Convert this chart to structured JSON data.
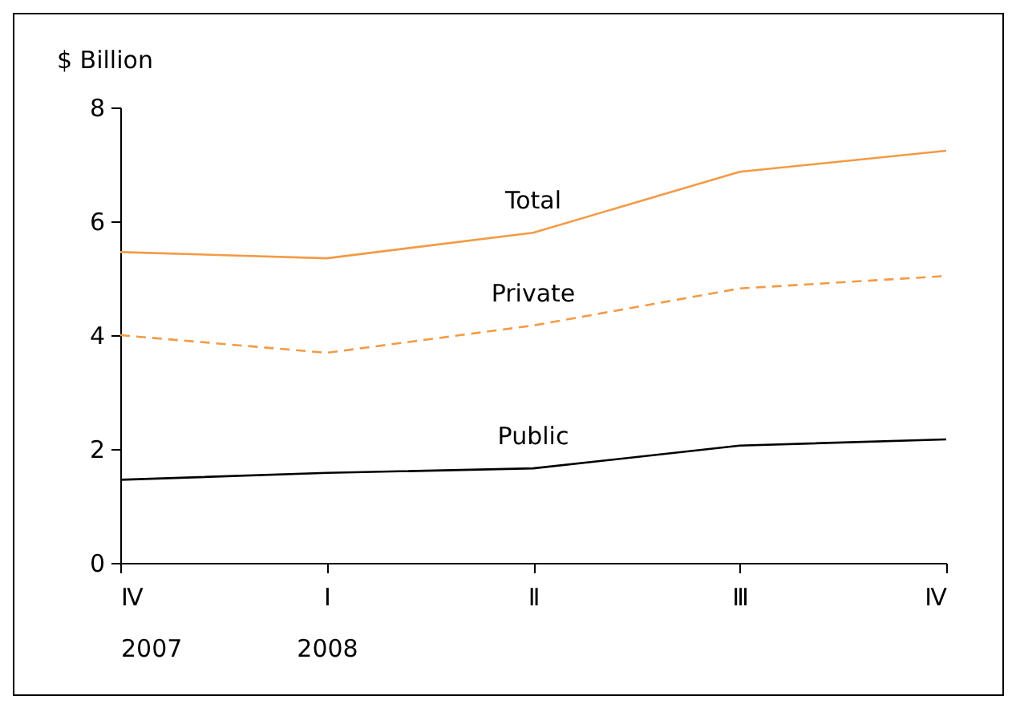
{
  "chart_data": {
    "type": "line",
    "ylabel": "$ Billion",
    "categories": [
      "Ⅳ\n2007",
      "Ⅰ\n2008",
      "Ⅱ",
      "Ⅲ",
      "Ⅳ"
    ],
    "ylim": [
      0,
      8
    ],
    "yticks": [
      0,
      2,
      4,
      6,
      8
    ],
    "series": [
      {
        "name": "Total",
        "color": "#f39a45",
        "line_style": "solid",
        "values": [
          5.46,
          5.35,
          5.8,
          6.87,
          7.24
        ]
      },
      {
        "name": "Private",
        "color": "#f39a45",
        "line_style": "dashed",
        "values": [
          4.0,
          3.69,
          4.17,
          4.82,
          5.04
        ]
      },
      {
        "name": "Public",
        "color": "#000000",
        "line_style": "solid",
        "values": [
          1.46,
          1.58,
          1.66,
          2.06,
          2.17
        ]
      }
    ]
  }
}
